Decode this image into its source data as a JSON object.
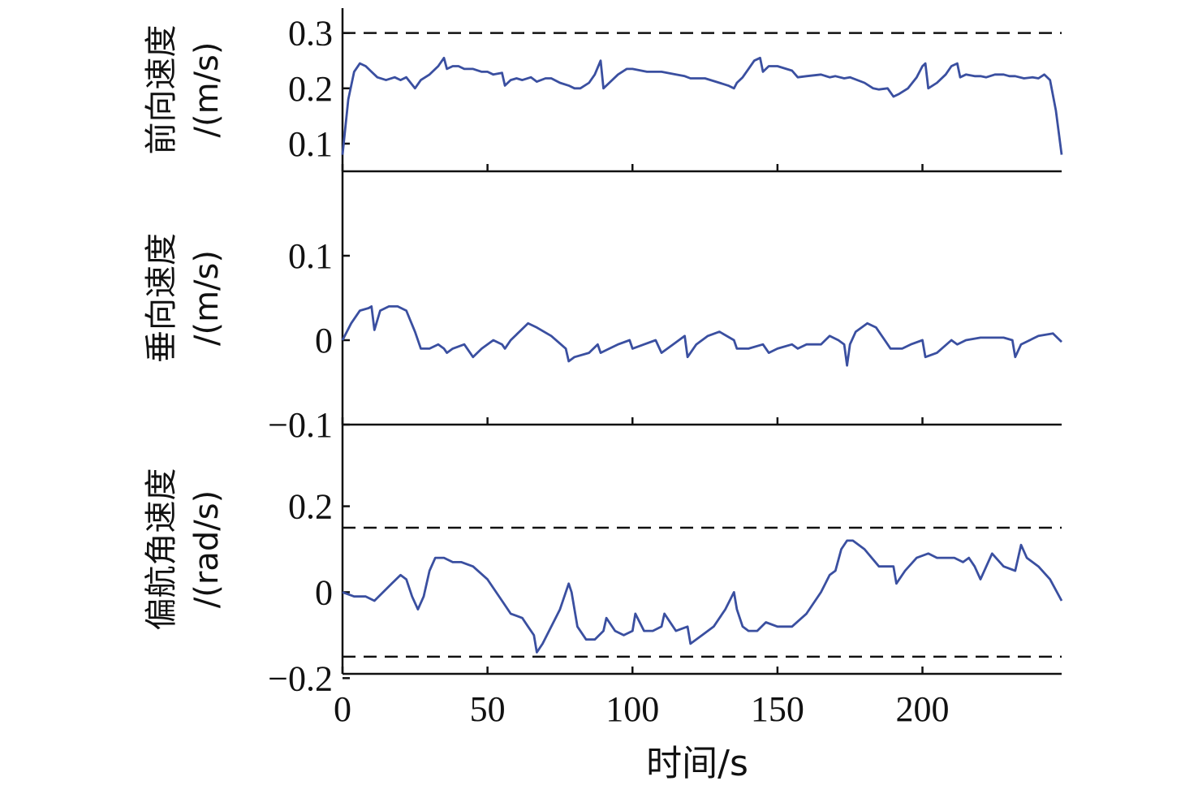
{
  "chart_data": [
    {
      "type": "line",
      "ylabel_line1": "前向速度",
      "ylabel_line2": "/(m/s)",
      "ylim": [
        0.05,
        0.345
      ],
      "yticks": [
        0.1,
        0.2,
        0.3
      ],
      "ytick_labels": [
        "0.1",
        "0.2",
        "0.3"
      ],
      "ref_lines": [
        0.3
      ],
      "series": [
        {
          "x": [
            0,
            2,
            4,
            6,
            8,
            10,
            12,
            15,
            18,
            20,
            22,
            25,
            27,
            30,
            33,
            35,
            36,
            38,
            40,
            42,
            45,
            48,
            50,
            52,
            55,
            56,
            58,
            60,
            62,
            65,
            67,
            70,
            72,
            75,
            78,
            80,
            82,
            85,
            87,
            89,
            90,
            92,
            95,
            98,
            100,
            105,
            110,
            115,
            118,
            120,
            125,
            130,
            133,
            135,
            136,
            138,
            140,
            142,
            144,
            145,
            147,
            150,
            155,
            157,
            160,
            165,
            168,
            170,
            173,
            175,
            180,
            183,
            185,
            188,
            190,
            192,
            195,
            198,
            200,
            201,
            202,
            205,
            208,
            210,
            212,
            213,
            215,
            218,
            220,
            222,
            225,
            228,
            230,
            232,
            235,
            238,
            240,
            242,
            244,
            246,
            248
          ],
          "y": [
            0.08,
            0.18,
            0.23,
            0.245,
            0.24,
            0.23,
            0.22,
            0.215,
            0.22,
            0.215,
            0.22,
            0.2,
            0.215,
            0.225,
            0.24,
            0.255,
            0.235,
            0.24,
            0.24,
            0.235,
            0.235,
            0.23,
            0.23,
            0.225,
            0.228,
            0.205,
            0.215,
            0.218,
            0.215,
            0.22,
            0.212,
            0.218,
            0.218,
            0.21,
            0.205,
            0.2,
            0.2,
            0.21,
            0.225,
            0.25,
            0.2,
            0.21,
            0.225,
            0.235,
            0.235,
            0.23,
            0.23,
            0.225,
            0.222,
            0.218,
            0.218,
            0.21,
            0.205,
            0.2,
            0.21,
            0.22,
            0.235,
            0.25,
            0.255,
            0.23,
            0.24,
            0.24,
            0.232,
            0.22,
            0.222,
            0.225,
            0.22,
            0.222,
            0.218,
            0.22,
            0.21,
            0.2,
            0.198,
            0.2,
            0.185,
            0.19,
            0.2,
            0.22,
            0.24,
            0.245,
            0.2,
            0.21,
            0.225,
            0.24,
            0.245,
            0.22,
            0.225,
            0.222,
            0.222,
            0.22,
            0.225,
            0.225,
            0.222,
            0.222,
            0.218,
            0.22,
            0.218,
            0.225,
            0.215,
            0.16,
            0.08
          ]
        }
      ]
    },
    {
      "type": "line",
      "ylabel_line1": "垂向速度",
      "ylabel_line2": "/(m/s)",
      "ylim": [
        -0.1,
        0.2
      ],
      "yticks": [
        -0.1,
        0,
        0.1
      ],
      "ytick_labels": [
        "−0.1",
        "0",
        "0.1"
      ],
      "series": [
        {
          "x": [
            0,
            3,
            6,
            9,
            10,
            11,
            13,
            16,
            19,
            22,
            25,
            27,
            30,
            33,
            35,
            36,
            38,
            42,
            44,
            45,
            48,
            52,
            55,
            56,
            58,
            61,
            64,
            67,
            72,
            77,
            78,
            80,
            85,
            88,
            89,
            92,
            95,
            99,
            100,
            104,
            108,
            110,
            114,
            118,
            119,
            122,
            126,
            130,
            135,
            136,
            140,
            145,
            147,
            150,
            155,
            157,
            160,
            165,
            168,
            171,
            173,
            174,
            175,
            177,
            181,
            184,
            187,
            189,
            190,
            193,
            196,
            200,
            201,
            205,
            210,
            212,
            215,
            220,
            225,
            228,
            231,
            232,
            234,
            240,
            245,
            248
          ],
          "y": [
            0,
            0.02,
            0.035,
            0.038,
            0.04,
            0.012,
            0.035,
            0.04,
            0.04,
            0.035,
            0.01,
            -0.01,
            -0.01,
            -0.005,
            -0.01,
            -0.015,
            -0.01,
            -0.005,
            -0.015,
            -0.02,
            -0.01,
            0,
            -0.005,
            -0.01,
            0,
            0.01,
            0.02,
            0.015,
            0.005,
            -0.01,
            -0.025,
            -0.02,
            -0.015,
            -0.005,
            -0.015,
            -0.01,
            -0.005,
            0,
            -0.01,
            -0.005,
            0,
            -0.015,
            -0.005,
            0.005,
            -0.02,
            -0.005,
            0.005,
            0.01,
            0,
            -0.01,
            -0.01,
            -0.005,
            -0.015,
            -0.01,
            -0.005,
            -0.01,
            -0.005,
            -0.005,
            0.005,
            0,
            -0.005,
            -0.03,
            -0.005,
            0.01,
            0.02,
            0.015,
            0,
            -0.01,
            -0.01,
            -0.01,
            -0.005,
            0,
            -0.02,
            -0.015,
            0,
            -0.005,
            0,
            0.003,
            0.003,
            0.003,
            0,
            -0.02,
            -0.005,
            0.005,
            0.008,
            -0.002
          ]
        }
      ]
    },
    {
      "type": "line",
      "ylabel_line1": "偏航角速度",
      "ylabel_line2": "/(rad/s)",
      "ylim": [
        -0.19,
        0.39
      ],
      "yticks": [
        -0.2,
        0,
        0.2
      ],
      "ytick_labels": [
        "−0.2",
        "0",
        "0.2"
      ],
      "ref_lines": [
        0.15,
        -0.15
      ],
      "series": [
        {
          "x": [
            0,
            4,
            8,
            11,
            14,
            17,
            20,
            22,
            24,
            26,
            28,
            30,
            32,
            35,
            38,
            41,
            45,
            50,
            55,
            58,
            62,
            64,
            66,
            67,
            69,
            72,
            75,
            78,
            79,
            81,
            84,
            87,
            90,
            91,
            94,
            97,
            100,
            101,
            104,
            107,
            110,
            111,
            115,
            119,
            120,
            124,
            128,
            132,
            135,
            136,
            138,
            140,
            143,
            146,
            150,
            155,
            160,
            165,
            168,
            170,
            172,
            174,
            176,
            180,
            185,
            190,
            191,
            194,
            198,
            202,
            205,
            208,
            211,
            214,
            216,
            218,
            220,
            224,
            228,
            232,
            234,
            236,
            240,
            244,
            248
          ],
          "y": [
            0,
            -0.01,
            -0.01,
            -0.02,
            0,
            0.02,
            0.04,
            0.03,
            -0.01,
            -0.04,
            -0.01,
            0.05,
            0.08,
            0.08,
            0.07,
            0.07,
            0.06,
            0.03,
            -0.02,
            -0.05,
            -0.06,
            -0.08,
            -0.1,
            -0.14,
            -0.12,
            -0.08,
            -0.04,
            0.02,
            0,
            -0.08,
            -0.11,
            -0.11,
            -0.09,
            -0.06,
            -0.09,
            -0.1,
            -0.09,
            -0.05,
            -0.09,
            -0.09,
            -0.08,
            -0.05,
            -0.09,
            -0.08,
            -0.12,
            -0.1,
            -0.08,
            -0.04,
            0,
            -0.04,
            -0.08,
            -0.09,
            -0.09,
            -0.07,
            -0.08,
            -0.08,
            -0.05,
            0,
            0.04,
            0.05,
            0.1,
            0.12,
            0.12,
            0.1,
            0.06,
            0.06,
            0.02,
            0.05,
            0.08,
            0.09,
            0.08,
            0.08,
            0.08,
            0.07,
            0.08,
            0.06,
            0.03,
            0.09,
            0.06,
            0.05,
            0.11,
            0.08,
            0.06,
            0.03,
            -0.02
          ]
        }
      ]
    }
  ],
  "x_axis": {
    "label": "时间/s",
    "ticks": [
      0,
      50,
      100,
      150,
      200
    ],
    "tick_labels": [
      "0",
      "50",
      "100",
      "150",
      "200"
    ],
    "xlim": [
      0,
      248
    ]
  },
  "colors": {
    "series": "#3a4fa0",
    "axis": "#111111",
    "reference": "#111111"
  }
}
